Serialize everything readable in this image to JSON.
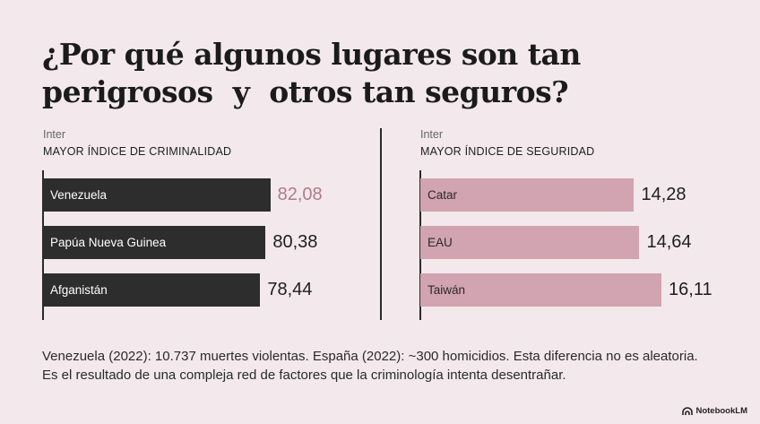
{
  "title": "¿Por qué algunos lugares son tan\nperigrosos  y  otros tan seguros?",
  "left_panel": {
    "source": "Inter",
    "heading": "MAYOR ÍNDICE DE CRIMINALIDAD"
  },
  "right_panel": {
    "source": "Inter",
    "heading": "MAYOR ÍNDICE DE SEGURIDAD"
  },
  "chart_data": [
    {
      "type": "bar",
      "orientation": "horizontal",
      "title": "MAYOR ÍNDICE DE CRIMINALIDAD",
      "categories": [
        "Venezuela",
        "Papúa Nueva Guinea",
        "Afganistán"
      ],
      "values": [
        82.08,
        80.38,
        78.44
      ],
      "value_labels": [
        "82,08",
        "80,38",
        "78,44"
      ],
      "highlight_index": 0,
      "colors": {
        "bar": "#2d2d2d",
        "highlight_label": "#b07b8a",
        "label": "#1e1e1e"
      }
    },
    {
      "type": "bar",
      "orientation": "horizontal",
      "title": "MAYOR ÍNDICE DE SEGURIDAD",
      "categories": [
        "Catar",
        "EAU",
        "Taiwán"
      ],
      "values": [
        14.28,
        14.64,
        16.11
      ],
      "value_labels": [
        "14,28",
        "14,64",
        "16,11"
      ],
      "colors": {
        "bar": "#d2a3b0",
        "label": "#1e1e1e"
      }
    }
  ],
  "footer": "Venezuela (2022): 10.737 muertes violentas. España (2022): ~300 homicidios. Esta diferencia no es aleatoria. Es el resultado de una compleja red de factores que la criminología intenta desentrañar.",
  "brand": {
    "name": "NotebookLM",
    "icon": "notebooklm-logo-icon"
  }
}
